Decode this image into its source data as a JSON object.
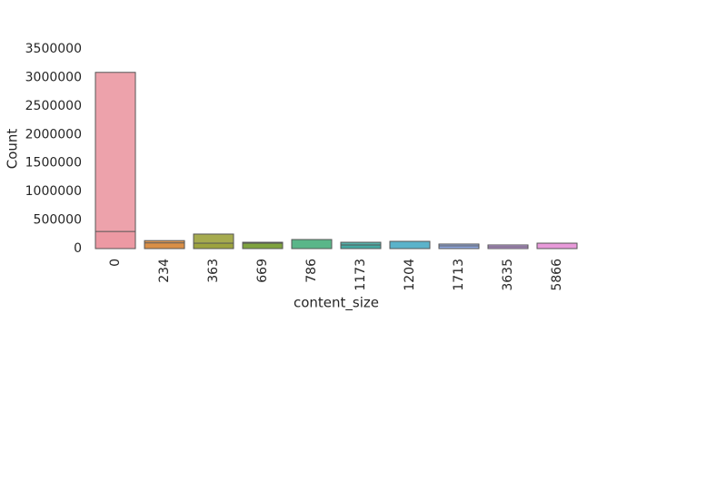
{
  "chart_data": {
    "type": "bar",
    "x_label": "content_size",
    "y_label": "Count",
    "categories": [
      "0",
      "234",
      "363",
      "669",
      "786",
      "1173",
      "1204",
      "1713",
      "3635",
      "5866"
    ],
    "colors": [
      "#eb98a2",
      "#d98e45",
      "#9ca23c",
      "#7da23c",
      "#48ae7c",
      "#44a8a0",
      "#49abc4",
      "#8fa9e0",
      "#c59ae6",
      "#e58fd6"
    ],
    "series": [
      {
        "values": [
          3090000,
          140000,
          255000,
          111000,
          159000,
          111000,
          127000,
          80000,
          64000,
          95000
        ]
      },
      {
        "values": [
          300000,
          100000,
          95000,
          95000,
          null,
          64000,
          null,
          48000,
          32000,
          null
        ]
      }
    ],
    "ylim": [
      0,
      3500000
    ],
    "yticks": [
      0,
      500000,
      1000000,
      1500000,
      2000000,
      2500000,
      3000000,
      3500000
    ]
  }
}
